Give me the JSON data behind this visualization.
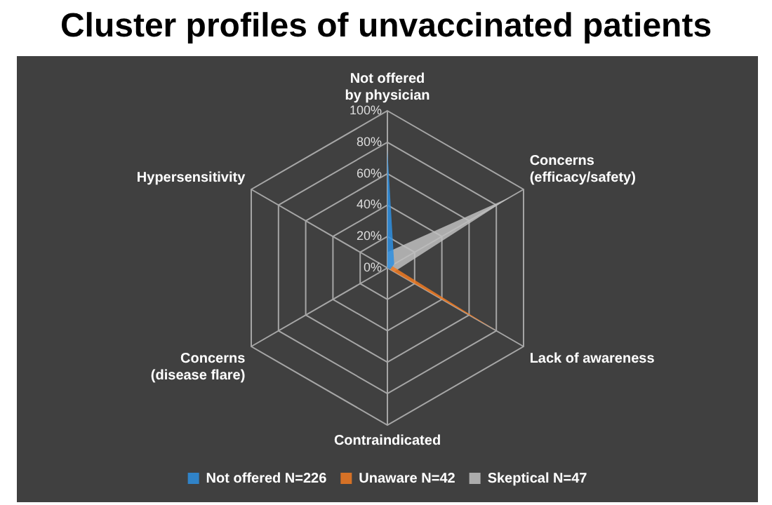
{
  "chart_data": {
    "type": "radar",
    "title": "Cluster profiles of unvaccinated patients",
    "categories": [
      "Not offered\nby physician",
      "Concerns\n(efficacy/safety)",
      "Lack of awareness",
      "Contraindicated",
      "Concerns\n(disease flare)",
      "Hypersensitivity"
    ],
    "series": [
      {
        "name": "Not offered N=226",
        "color": "#2e8fe0",
        "values": [
          75,
          5,
          2,
          0,
          0,
          0
        ]
      },
      {
        "name": "Unaware N=42",
        "color": "#f07a22",
        "values": [
          0,
          3,
          80,
          0,
          0,
          0
        ]
      },
      {
        "name": "Skeptical N=47",
        "color": "#bfbfbf",
        "values": [
          10,
          90,
          5,
          0,
          0,
          0
        ]
      }
    ],
    "ylim": [
      0,
      100
    ],
    "yticks": [
      {
        "value": 0,
        "label": "0%"
      },
      {
        "value": 20,
        "label": "20%"
      },
      {
        "value": 40,
        "label": "40%"
      },
      {
        "value": 60,
        "label": "60%"
      },
      {
        "value": 80,
        "label": "80%"
      },
      {
        "value": 100,
        "label": "100%"
      }
    ],
    "grid": true,
    "legend": "bottom"
  }
}
